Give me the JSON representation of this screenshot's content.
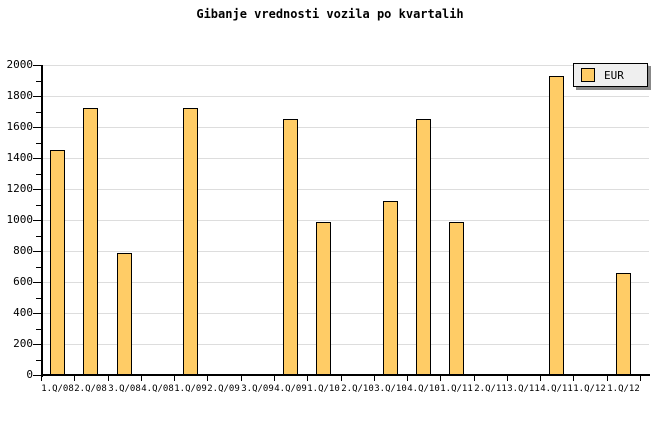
{
  "title": "Gibanje vrednosti vozila po kvartalih",
  "legend": {
    "label": "EUR",
    "position": "top-right"
  },
  "colors": {
    "background": "#FFFFFF",
    "bar_fill": "#FFCC66",
    "bar_border": "#000000",
    "grid": "#DDDDDD",
    "axis": "#000000",
    "text": "#000000",
    "legend_bg": "#EFEFEF",
    "legend_border": "#000000",
    "legend_shadow": "#888888"
  },
  "y_axis": {
    "tick_labels": [
      "0",
      "200",
      "400",
      "600",
      "800",
      "1000",
      "1200",
      "1400",
      "1600",
      "1800",
      "2000"
    ]
  },
  "chart_data": {
    "type": "bar",
    "title": "Gibanje vrednosti vozila po kvartalih",
    "categories": [
      "1.Q/08",
      "2.Q/08",
      "3.Q/08",
      "4.Q/08",
      "1.Q/09",
      "2.Q/09",
      "3.Q/09",
      "4.Q/09",
      "1.Q/10",
      "2.Q/10",
      "3.Q/10",
      "4.Q/10",
      "1.Q/11",
      "2.Q/11",
      "3.Q/11",
      "4.Q/11",
      "1.Q/12",
      "1.Q/12"
    ],
    "series": [
      {
        "name": "EUR",
        "values": [
          1450,
          1720,
          790,
          0,
          1720,
          0,
          0,
          1650,
          990,
          0,
          1120,
          1650,
          990,
          0,
          0,
          1930,
          0,
          660
        ]
      }
    ],
    "xlabel": "",
    "ylabel": "",
    "ylim": [
      0,
      2000
    ],
    "ytick_major": 200,
    "ytick_minor": 100,
    "grid": "horizontal-major-only",
    "legend_position": "top-right",
    "note": "bars with value 0 are not drawn (missing quarters)"
  }
}
